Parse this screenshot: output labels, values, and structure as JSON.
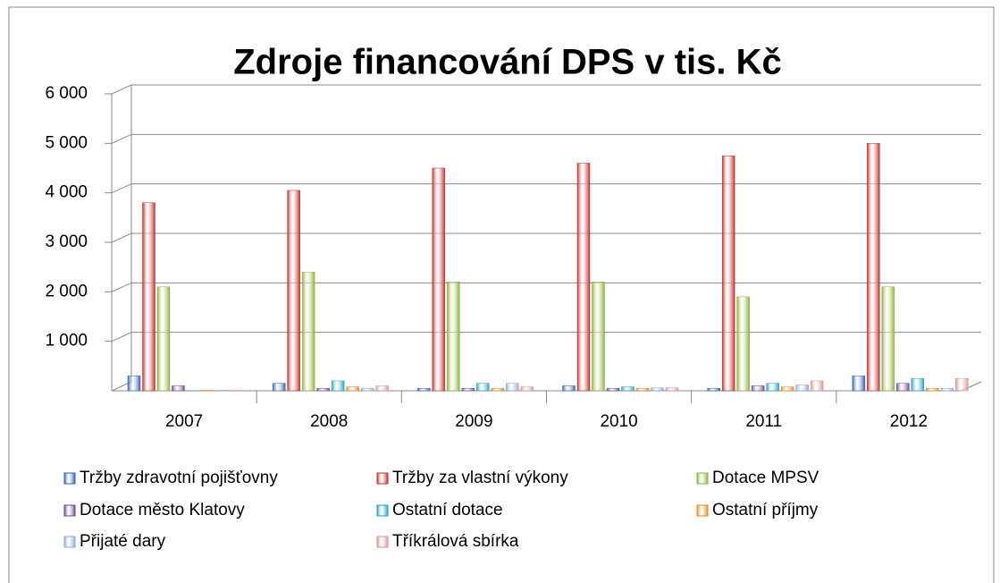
{
  "chart_data": {
    "type": "bar",
    "title": "Zdroje financování DPS v tis. Kč",
    "categories": [
      "2007",
      "2008",
      "2009",
      "2010",
      "2011",
      "2012"
    ],
    "series": [
      {
        "name": "Tržby zdravotní pojišťovny",
        "color": "#2e64ad",
        "values": [
          300,
          150,
          50,
          100,
          50,
          300
        ]
      },
      {
        "name": "Tržby za vlastní výkony",
        "color": "#c0302c",
        "values": [
          3800,
          4050,
          4500,
          4600,
          4750,
          5000
        ]
      },
      {
        "name": "Dotace MPSV",
        "color": "#8db338",
        "values": [
          2100,
          2400,
          2200,
          2200,
          1900,
          2100
        ]
      },
      {
        "name": "Dotace město Klatovy",
        "color": "#6a4896",
        "values": [
          100,
          50,
          50,
          50,
          100,
          150
        ]
      },
      {
        "name": "Ostatní dotace",
        "color": "#28a2c0",
        "values": [
          0,
          200,
          150,
          80,
          150,
          250
        ]
      },
      {
        "name": "Ostatní příjmy",
        "color": "#e88a20",
        "values": [
          10,
          80,
          50,
          50,
          80,
          50
        ]
      },
      {
        "name": "Přijaté dary",
        "color": "#8ea9d8",
        "values": [
          10,
          50,
          150,
          60,
          120,
          50
        ]
      },
      {
        "name": "Tříkrálová sbírka",
        "color": "#d99594",
        "values": [
          10,
          100,
          80,
          60,
          200,
          250
        ]
      }
    ],
    "ylim": [
      0,
      6000
    ],
    "yticks": [
      {
        "value": 1000,
        "label": "1 000"
      },
      {
        "value": 2000,
        "label": "2 000"
      },
      {
        "value": 3000,
        "label": "3 000"
      },
      {
        "value": 4000,
        "label": "4 000"
      },
      {
        "value": 5000,
        "label": "5 000"
      },
      {
        "value": 6000,
        "label": "6 000"
      }
    ],
    "grid": true,
    "legend": "bottom"
  }
}
